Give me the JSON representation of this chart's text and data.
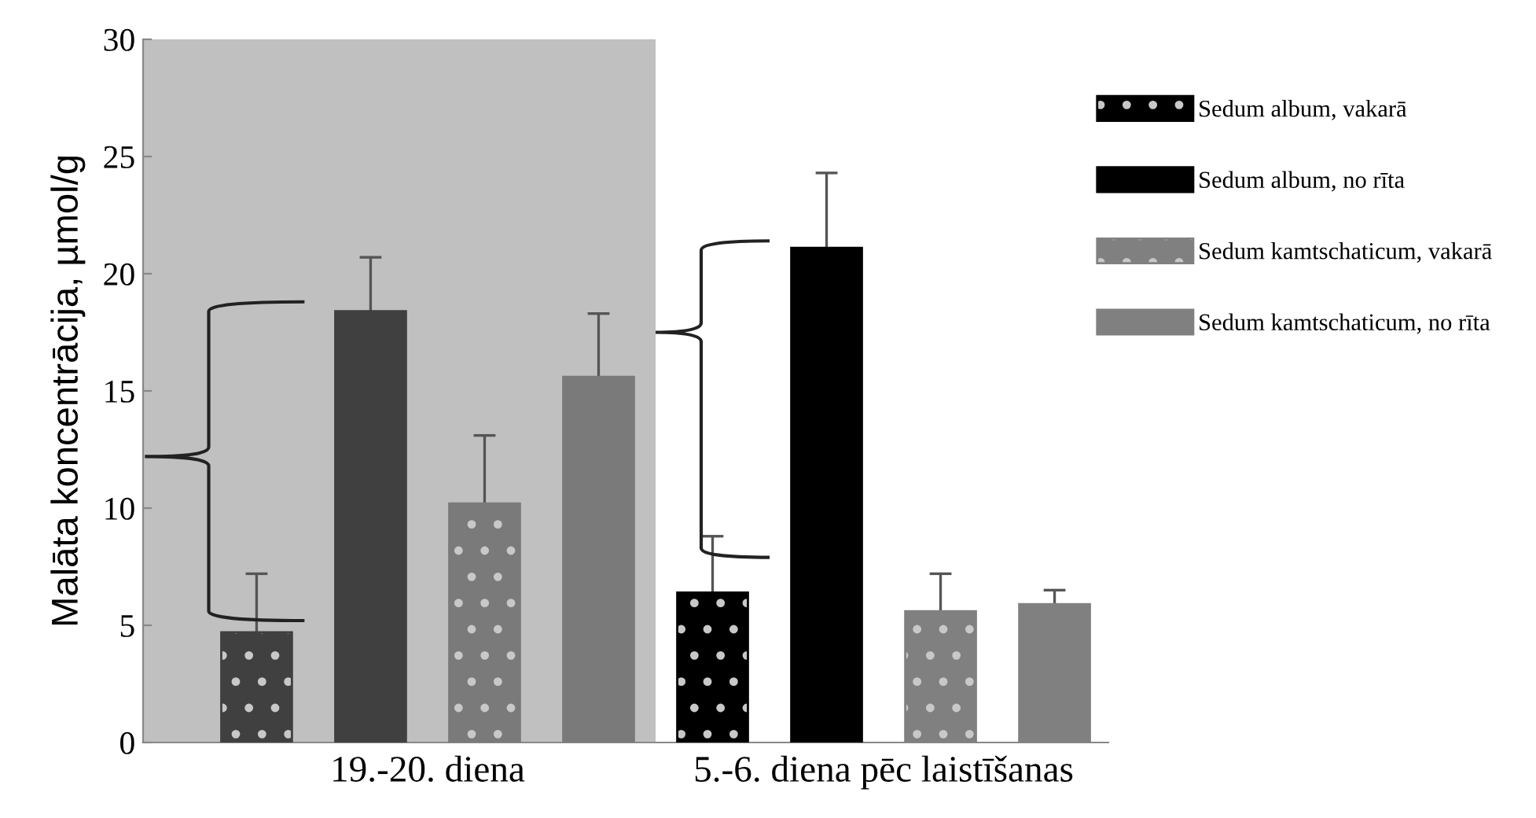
{
  "chart_data": {
    "type": "bar",
    "ylabel": "Malāta koncentrācija, µmol/g",
    "categories": [
      "19.-20. diena",
      "5.-6. diena pēc laistīšanas"
    ],
    "series": [
      {
        "name": "Sedum album, vakarā",
        "color": "#000000",
        "colors": [
          "#404040",
          "#000000"
        ],
        "values": [
          4.7,
          6.4
        ],
        "errors": [
          2.5,
          2.4
        ]
      },
      {
        "name": "Sedum album, no rīta",
        "color": "#000000",
        "colors": [
          "#404040",
          "#000000"
        ],
        "values": [
          18.4,
          21.1
        ],
        "errors": [
          2.3,
          3.2
        ]
      },
      {
        "name": "Sedum kamtschaticum, vakarā",
        "color": "#808080",
        "colors": [
          "#7a7a7a",
          "#808080"
        ],
        "values": [
          10.2,
          5.6
        ],
        "errors": [
          2.9,
          1.6
        ]
      },
      {
        "name": "Sedum kamtschaticum, no rīta",
        "color": "#808080",
        "colors": [
          "#7a7a7a",
          "#808080"
        ],
        "values": [
          15.6,
          5.9
        ],
        "errors": [
          2.7,
          0.6
        ]
      }
    ],
    "ylim": [
      0,
      30
    ],
    "yticks": [
      0,
      5,
      10,
      15,
      20,
      25,
      30
    ],
    "grid": false,
    "legend": "top right"
  }
}
